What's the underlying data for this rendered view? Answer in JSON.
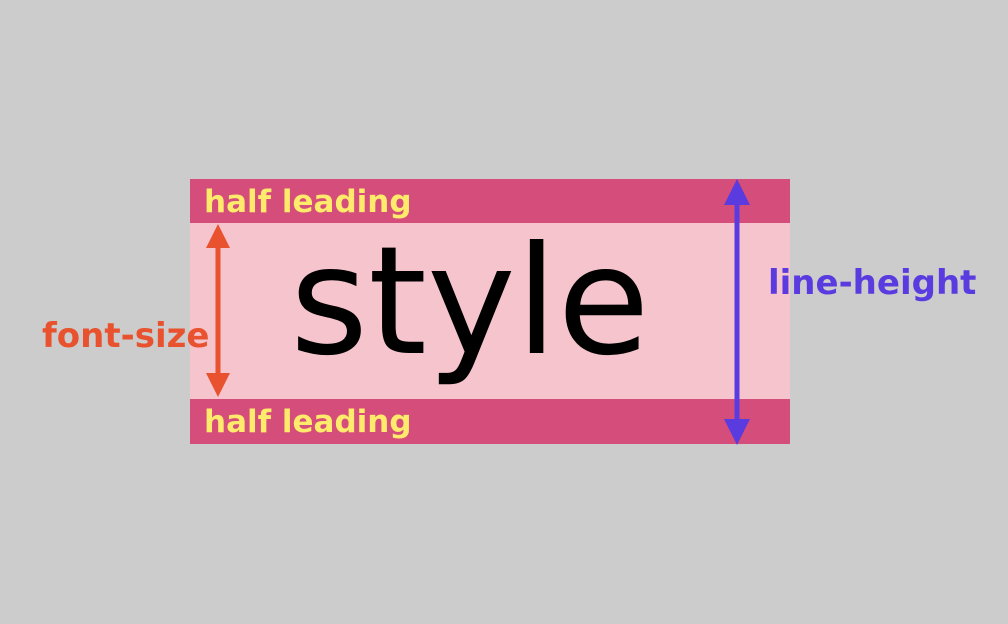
{
  "diagram": {
    "sample_word": "style",
    "top_band_label": "half leading",
    "bottom_band_label": "half leading",
    "font_size_label": "font-size",
    "line_height_label": "line-height"
  },
  "colors": {
    "background": "#cccccc",
    "leading_band": "#d54d7a",
    "content_area": "#f5c4cd",
    "leading_text": "#ffeb6b",
    "font_size_color": "#e8522e",
    "line_height_color": "#5a3be0"
  }
}
